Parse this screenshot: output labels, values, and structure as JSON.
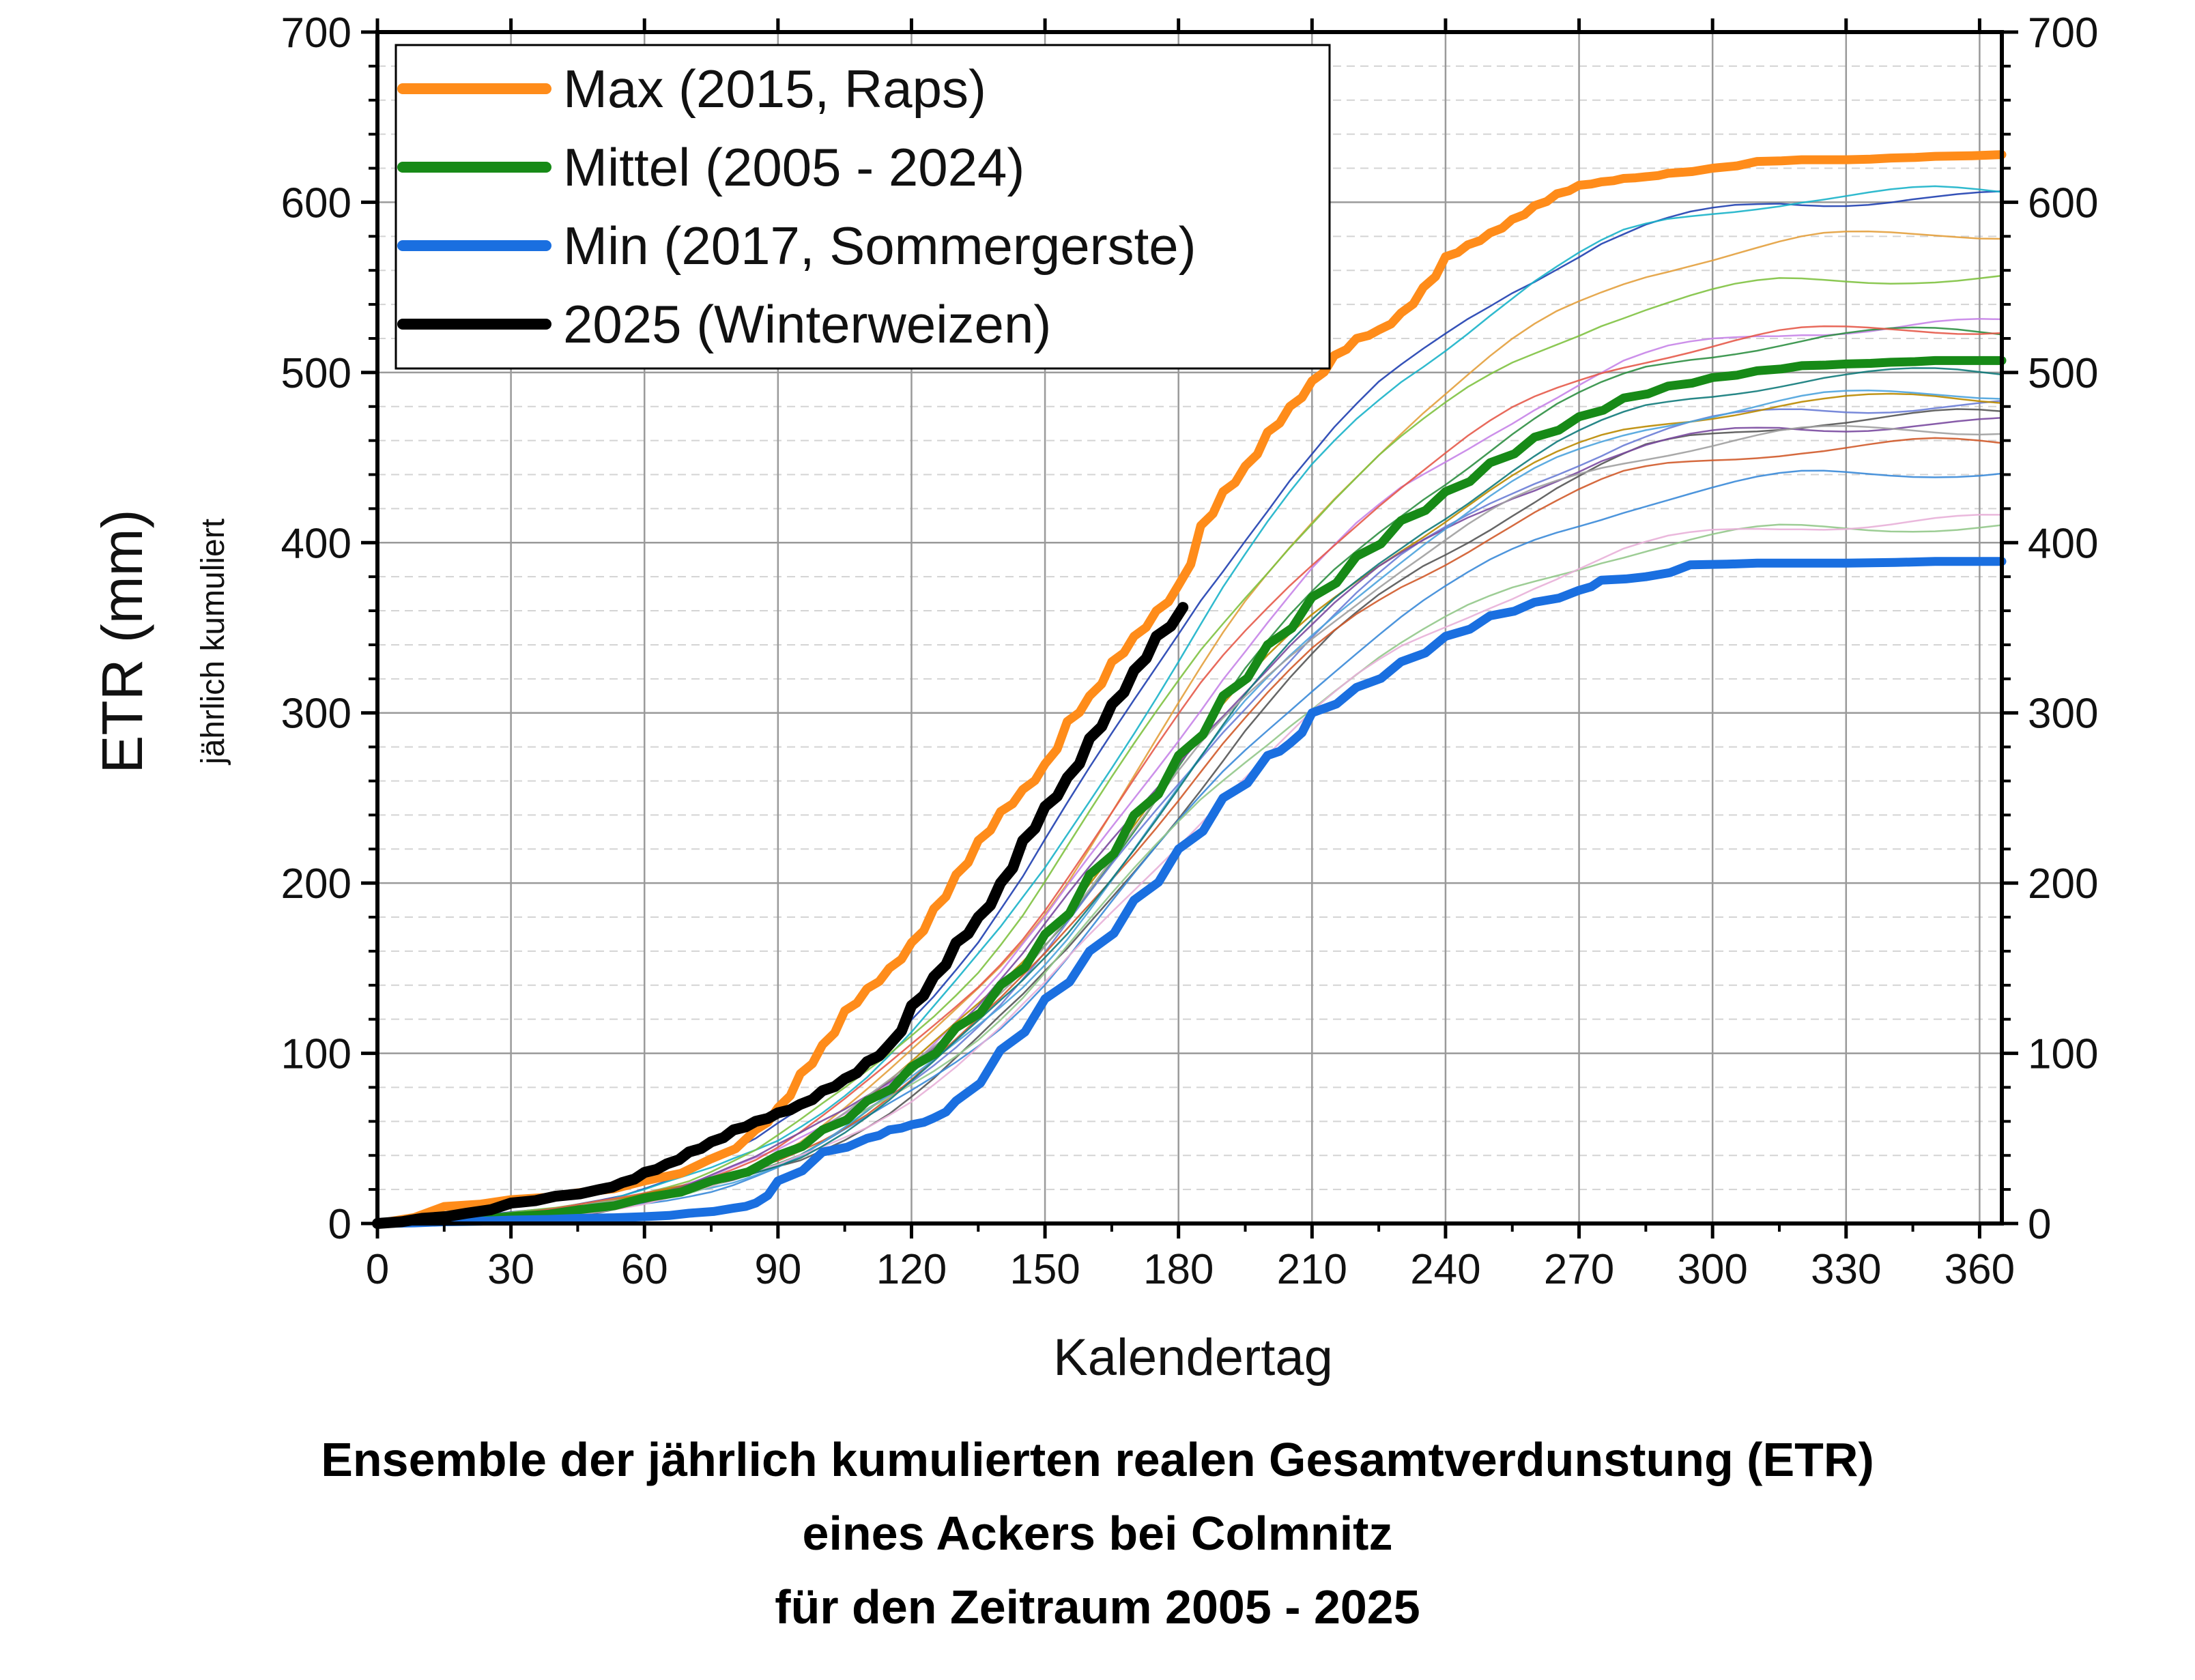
{
  "chart_data": {
    "type": "line",
    "ylabel": "ETR (mm)",
    "ylabel_sub": "jährlich kumuliert",
    "xlabel": "Kalendertag",
    "xlim": [
      0,
      365
    ],
    "ylim": [
      0,
      700
    ],
    "xticks": [
      0,
      30,
      60,
      90,
      120,
      150,
      180,
      210,
      240,
      270,
      300,
      330,
      360
    ],
    "yticks": [
      0,
      100,
      200,
      300,
      400,
      500,
      600,
      700
    ],
    "y2ticks": [
      0,
      100,
      200,
      300,
      400,
      500,
      600,
      700
    ],
    "grid": true,
    "legend_position": "top-left",
    "title_lines": [
      "Ensemble der jährlich kumulierten realen Gesamtverdunstung (ETR)",
      "eines Ackers bei Colmnitz",
      "für den Zeitraum 2005 - 2025"
    ],
    "highlight_series": [
      {
        "name": "Max (2015, Raps)",
        "color": "#ff8c1a",
        "x": [
          0,
          15,
          30,
          45,
          60,
          75,
          85,
          90,
          95,
          100,
          105,
          110,
          115,
          120,
          125,
          130,
          135,
          140,
          145,
          150,
          155,
          160,
          165,
          170,
          175,
          180,
          185,
          190,
          195,
          200,
          205,
          210,
          215,
          220,
          225,
          230,
          235,
          240,
          245,
          250,
          255,
          260,
          265,
          270,
          275,
          280,
          285,
          290,
          300,
          310,
          320,
          330,
          340,
          350,
          365
        ],
        "y": [
          0,
          10,
          14,
          18,
          25,
          38,
          55,
          68,
          88,
          105,
          125,
          138,
          150,
          165,
          185,
          205,
          225,
          242,
          255,
          270,
          295,
          310,
          330,
          345,
          360,
          375,
          410,
          430,
          445,
          465,
          480,
          495,
          510,
          520,
          525,
          535,
          550,
          568,
          575,
          582,
          590,
          598,
          605,
          610,
          612,
          614,
          615,
          617,
          620,
          624,
          625,
          625,
          626,
          627,
          628
        ]
      },
      {
        "name": "Mittel (2005 - 2024)",
        "color": "#178a17",
        "x": [
          0,
          15,
          30,
          45,
          60,
          75,
          90,
          100,
          110,
          120,
          130,
          140,
          150,
          160,
          170,
          180,
          190,
          200,
          210,
          220,
          230,
          240,
          250,
          260,
          270,
          280,
          290,
          300,
          310,
          320,
          330,
          340,
          350,
          365
        ],
        "y": [
          0,
          2,
          4,
          8,
          15,
          25,
          40,
          55,
          72,
          92,
          115,
          140,
          170,
          205,
          240,
          275,
          310,
          340,
          368,
          392,
          413,
          430,
          447,
          462,
          474,
          485,
          492,
          497,
          501,
          504,
          505,
          506,
          507,
          507
        ]
      },
      {
        "name": "Min (2017, Sommergerste)",
        "color": "#1a6fe0",
        "x": [
          0,
          15,
          30,
          45,
          60,
          70,
          80,
          85,
          90,
          100,
          110,
          115,
          120,
          125,
          130,
          140,
          150,
          160,
          170,
          180,
          190,
          200,
          205,
          210,
          220,
          230,
          240,
          250,
          260,
          270,
          275,
          285,
          295,
          310,
          330,
          350,
          365
        ],
        "y": [
          0,
          1,
          2,
          3,
          4,
          6,
          9,
          12,
          25,
          42,
          50,
          55,
          58,
          62,
          72,
          102,
          132,
          160,
          190,
          220,
          250,
          275,
          282,
          300,
          315,
          330,
          345,
          357,
          365,
          372,
          378,
          380,
          387,
          388,
          388,
          389,
          389
        ]
      },
      {
        "name": "2025 (Winterweizen)",
        "color": "#000000",
        "x": [
          0,
          10,
          20,
          30,
          40,
          50,
          55,
          60,
          65,
          70,
          75,
          80,
          85,
          90,
          95,
          100,
          105,
          110,
          115,
          120,
          125,
          130,
          135,
          140,
          145,
          150,
          155,
          160,
          165,
          170,
          175,
          181
        ],
        "y": [
          0,
          3,
          6,
          12,
          16,
          20,
          24,
          30,
          35,
          42,
          48,
          55,
          60,
          65,
          70,
          78,
          85,
          95,
          105,
          128,
          145,
          165,
          180,
          200,
          225,
          245,
          262,
          285,
          305,
          325,
          345,
          362
        ]
      }
    ],
    "ensemble_colors": [
      "#1f3fb0",
      "#19b3c9",
      "#e3a03d",
      "#7fc241",
      "#c784e8",
      "#2e8f43",
      "#e65a4a",
      "#6a7dd6",
      "#555555",
      "#ba8a00",
      "#3a8ad8",
      "#7a4aa0",
      "#d05a2a",
      "#4ca3dd",
      "#92c88a",
      "#e8b0d8",
      "#0f7a7a",
      "#a0a0a0"
    ],
    "ensemble_finals": [
      603,
      606,
      582,
      556,
      528,
      524,
      526,
      481,
      475,
      485,
      442,
      470,
      458,
      488,
      410,
      413,
      500,
      467
    ]
  }
}
